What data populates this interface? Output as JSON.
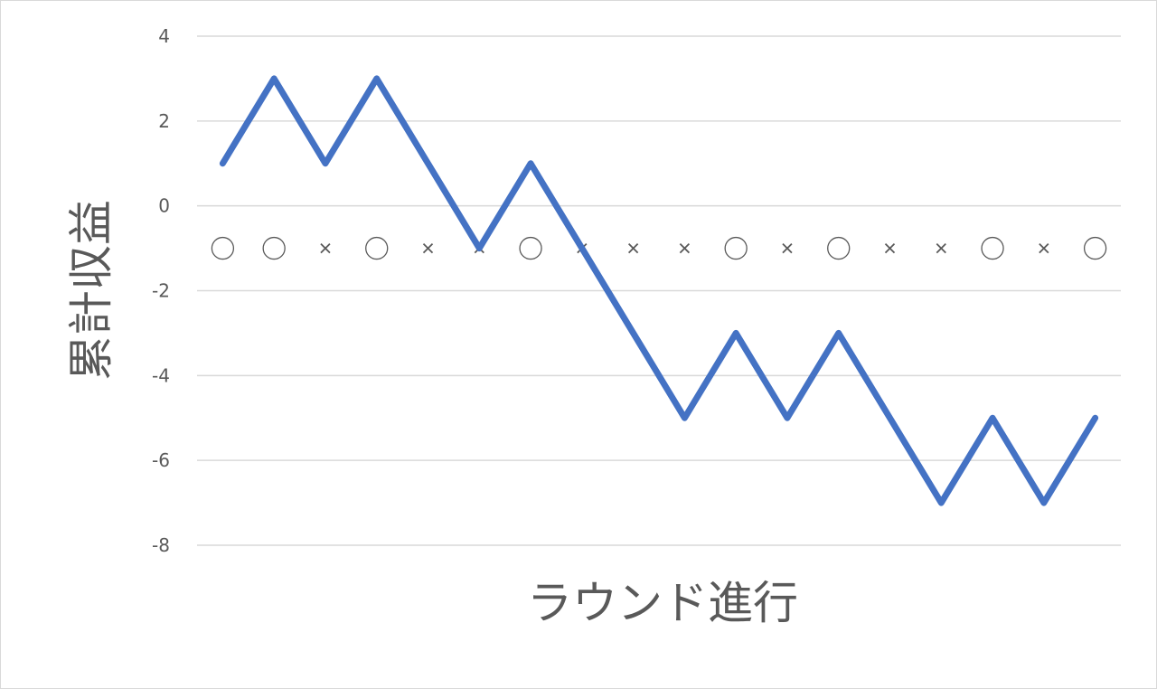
{
  "chart_data": {
    "type": "line",
    "title": "",
    "xlabel": "ラウンド進行",
    "ylabel": "累計収益",
    "ylim": [
      -8,
      4
    ],
    "yticks": [
      4,
      2,
      0,
      -2,
      -4,
      -6,
      -8
    ],
    "ytick_labels": [
      "4",
      "2",
      "0",
      "-2",
      "-4",
      "-6",
      "-8"
    ],
    "grid": true,
    "x": [
      1,
      2,
      3,
      4,
      5,
      6,
      7,
      8,
      9,
      10,
      11,
      12,
      13,
      14,
      15,
      16,
      17,
      18
    ],
    "series": [
      {
        "values": [
          1,
          3,
          1,
          3,
          1,
          -1,
          1,
          -1,
          -3,
          -5,
          -3,
          -5,
          -3,
          -5,
          -7,
          -5,
          -7,
          -5
        ],
        "color": "#4472C4"
      }
    ],
    "result_markers": {
      "y": -1,
      "values": [
        "○",
        "○",
        "×",
        "○",
        "×",
        "×",
        "○",
        "×",
        "×",
        "×",
        "○",
        "×",
        "○",
        "×",
        "×",
        "○",
        "×",
        "○"
      ],
      "color": "#595959"
    }
  }
}
